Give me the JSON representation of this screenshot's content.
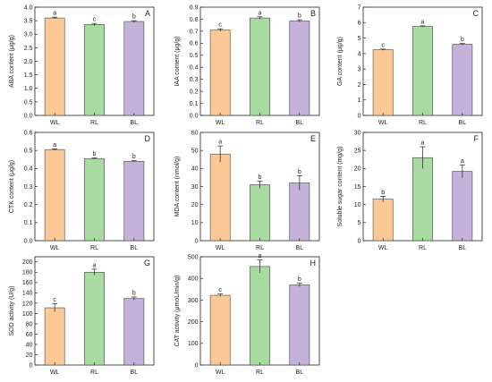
{
  "figure": {
    "colors": {
      "WL": "#fcc996",
      "RL": "#a7dba0",
      "BL": "#c4b2da"
    },
    "panels": [
      {
        "letter": "A",
        "ylabel": "ABA content (μg/g)"
      },
      {
        "letter": "B",
        "ylabel": "IAA content (μg/g)"
      },
      {
        "letter": "C",
        "ylabel": "GA content (μg/g)"
      },
      {
        "letter": "D",
        "ylabel": "CTK content (μg/g)"
      },
      {
        "letter": "E",
        "ylabel": "MDA content (nmol/g)"
      },
      {
        "letter": "F",
        "ylabel": "Soluble sugar content (mg/g)"
      },
      {
        "letter": "G",
        "ylabel": "SOD activity (U/g)"
      },
      {
        "letter": "H",
        "ylabel": "CAT activity (μmoL/min/g)"
      }
    ]
  },
  "chart_data": [
    {
      "type": "bar",
      "panel": "A",
      "ylabel": "ABA content (μg/g)",
      "categories": [
        "WL",
        "RL",
        "BL"
      ],
      "values": [
        3.6,
        3.36,
        3.47
      ],
      "errors": [
        0.03,
        0.04,
        0.03
      ],
      "significance": [
        "a",
        "c",
        "b"
      ],
      "ylim": [
        0,
        4.0
      ],
      "yticks": [
        0,
        0.5,
        1.0,
        1.5,
        2.0,
        2.5,
        3.0,
        3.5,
        4.0
      ],
      "ytick_labels": [
        "0.0",
        "0.5",
        "1.0",
        "1.5",
        "2.0",
        "2.5",
        "3.0",
        "3.5",
        "4.0"
      ],
      "grid": false
    },
    {
      "type": "bar",
      "panel": "B",
      "ylabel": "IAA content (μg/g)",
      "categories": [
        "WL",
        "RL",
        "BL"
      ],
      "values": [
        0.71,
        0.81,
        0.785
      ],
      "errors": [
        0.01,
        0.01,
        0.01
      ],
      "significance": [
        "c",
        "a",
        "b"
      ],
      "ylim": [
        0,
        0.9
      ],
      "yticks": [
        0,
        0.1,
        0.2,
        0.3,
        0.4,
        0.5,
        0.6,
        0.7,
        0.8,
        0.9
      ],
      "ytick_labels": [
        "0.0",
        "0.1",
        "0.2",
        "0.3",
        "0.4",
        "0.5",
        "0.6",
        "0.7",
        "0.8",
        "0.9"
      ],
      "grid": false
    },
    {
      "type": "bar",
      "panel": "C",
      "ylabel": "GA content (μg/g)",
      "categories": [
        "WL",
        "RL",
        "BL"
      ],
      "values": [
        4.25,
        5.75,
        4.6
      ],
      "errors": [
        0.04,
        0.04,
        0.05
      ],
      "significance": [
        "c",
        "a",
        "b"
      ],
      "ylim": [
        0,
        7
      ],
      "yticks": [
        0,
        1,
        2,
        3,
        4,
        5,
        6,
        7
      ],
      "ytick_labels": [
        "0",
        "1",
        "2",
        "3",
        "4",
        "5",
        "6",
        "7"
      ],
      "grid": false
    },
    {
      "type": "bar",
      "panel": "D",
      "ylabel": "CTK content (μg/g)",
      "categories": [
        "WL",
        "RL",
        "BL"
      ],
      "values": [
        0.505,
        0.455,
        0.44
      ],
      "errors": [
        0.004,
        0.003,
        0.003
      ],
      "significance": [
        "a",
        "b",
        "b"
      ],
      "ylim": [
        0,
        0.6
      ],
      "yticks": [
        0,
        0.1,
        0.2,
        0.3,
        0.4,
        0.5,
        0.6
      ],
      "ytick_labels": [
        "0.0",
        "0.1",
        "0.2",
        "0.3",
        "0.4",
        "0.5",
        "0.6"
      ],
      "grid": false
    },
    {
      "type": "bar",
      "panel": "E",
      "ylabel": "MDA content (nmol/g)",
      "categories": [
        "WL",
        "RL",
        "BL"
      ],
      "values": [
        48,
        31,
        32
      ],
      "errors": [
        4.5,
        2.0,
        4.0
      ],
      "significance": [
        "a",
        "b",
        "b"
      ],
      "ylim": [
        0,
        60
      ],
      "yticks": [
        0,
        10,
        20,
        30,
        40,
        50,
        60
      ],
      "ytick_labels": [
        "0",
        "10",
        "20",
        "30",
        "40",
        "50",
        "60"
      ],
      "grid": false
    },
    {
      "type": "bar",
      "panel": "F",
      "ylabel": "Soluble sugar content (mg/g)",
      "categories": [
        "WL",
        "RL",
        "BL"
      ],
      "values": [
        11.5,
        23,
        19.2
      ],
      "errors": [
        0.8,
        3.0,
        1.8
      ],
      "significance": [
        "b",
        "a",
        "a"
      ],
      "ylim": [
        0,
        30
      ],
      "yticks": [
        0,
        5,
        10,
        15,
        20,
        25,
        30
      ],
      "ytick_labels": [
        "0",
        "5",
        "10",
        "15",
        "20",
        "25",
        "30"
      ],
      "grid": false
    },
    {
      "type": "bar",
      "panel": "G",
      "ylabel": "SOD activity (U/g)",
      "categories": [
        "WL",
        "RL",
        "BL"
      ],
      "values": [
        111,
        180,
        129
      ],
      "errors": [
        8,
        6,
        3
      ],
      "significance": [
        "c",
        "a",
        "b"
      ],
      "ylim": [
        0,
        210
      ],
      "yticks": [
        0,
        20,
        40,
        60,
        80,
        100,
        120,
        140,
        160,
        180,
        200
      ],
      "ytick_labels": [
        "0",
        "20",
        "40",
        "60",
        "80",
        "100",
        "120",
        "140",
        "160",
        "180",
        "200"
      ],
      "grid": false
    },
    {
      "type": "bar",
      "panel": "H",
      "ylabel": "CAT activity (μmoL/min/g)",
      "categories": [
        "WL",
        "RL",
        "BL"
      ],
      "values": [
        322,
        455,
        370
      ],
      "errors": [
        6,
        30,
        8
      ],
      "significance": [
        "c",
        "a",
        "b"
      ],
      "ylim": [
        0,
        500
      ],
      "yticks": [
        0,
        100,
        200,
        300,
        400,
        500
      ],
      "ytick_labels": [
        "0",
        "100",
        "200",
        "300",
        "400",
        "500"
      ],
      "grid": false
    }
  ]
}
